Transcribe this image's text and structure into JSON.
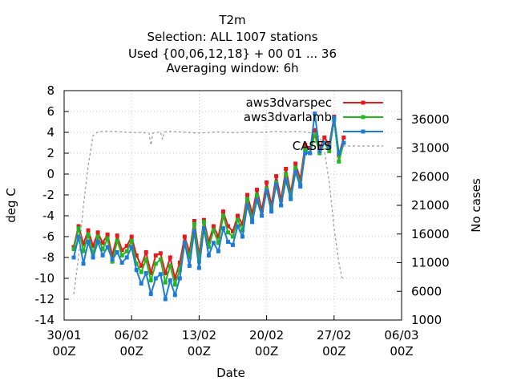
{
  "chart_data": {
    "type": "line",
    "title_lines": [
      "T2m",
      "Selection: ALL    1007 stations",
      "Used {00,06,12,18} + 00 01 ... 36",
      "Averaging window:  6h"
    ],
    "xlabel": "Date",
    "ylabel": "deg C",
    "y2label": "No cases",
    "xlim_days": [
      0,
      33
    ],
    "ylim": [
      -14,
      8
    ],
    "y2lim": [
      1000,
      41000
    ],
    "x_ticks": [
      {
        "day": 0,
        "label1": "30/01",
        "label2": "00Z"
      },
      {
        "day": 7,
        "label1": "06/02",
        "label2": "00Z"
      },
      {
        "day": 14,
        "label1": "13/02",
        "label2": "00Z"
      },
      {
        "day": 21,
        "label1": "20/02",
        "label2": "00Z"
      },
      {
        "day": 28,
        "label1": "27/02",
        "label2": "00Z"
      },
      {
        "day": 35,
        "label1": "06/03",
        "label2": "00Z"
      }
    ],
    "y_ticks": [
      -14,
      -12,
      -10,
      -8,
      -6,
      -4,
      -2,
      0,
      2,
      4,
      6,
      8
    ],
    "y2_ticks": [
      1000,
      6000,
      11000,
      16000,
      21000,
      26000,
      31000,
      36000
    ],
    "legend_position": "top-right",
    "series": [
      {
        "name": "aws3dvarspec",
        "color": "#e41a1c",
        "axis": "y",
        "x": [
          1.0,
          1.5,
          2.0,
          2.5,
          3.0,
          3.5,
          4.0,
          4.5,
          5.0,
          5.5,
          6.0,
          6.5,
          7.0,
          7.5,
          8.0,
          8.5,
          9.0,
          9.5,
          10.0,
          10.5,
          11.0,
          11.5,
          12.0,
          12.5,
          13.0,
          13.5,
          14.0,
          14.5,
          15.0,
          15.5,
          16.0,
          16.5,
          17.0,
          17.5,
          18.0,
          18.5,
          19.0,
          19.5,
          20.0,
          20.5,
          21.0,
          21.5,
          22.0,
          22.5,
          23.0,
          23.5,
          24.0,
          24.5,
          25.0,
          25.5,
          26.0,
          26.5,
          27.0,
          27.5,
          28.0,
          28.5,
          29.0
        ],
        "y": [
          -7.0,
          -5.0,
          -6.7,
          -5.4,
          -6.9,
          -5.6,
          -6.6,
          -5.8,
          -7.8,
          -5.9,
          -7.3,
          -6.9,
          -6.0,
          -7.8,
          -8.8,
          -7.5,
          -9.5,
          -7.8,
          -7.6,
          -9.5,
          -8.0,
          -10.0,
          -8.5,
          -6.0,
          -7.5,
          -4.5,
          -7.8,
          -4.4,
          -6.5,
          -5.0,
          -6.0,
          -3.6,
          -5.0,
          -5.5,
          -4.0,
          -4.8,
          -2.0,
          -3.8,
          -1.5,
          -3.5,
          -0.8,
          -3.0,
          -0.2,
          -2.5,
          0.5,
          -1.8,
          1.0,
          -0.5,
          2.8,
          2.5,
          4.2,
          2.5,
          3.5,
          2.8,
          5.5,
          1.8,
          3.5
        ]
      },
      {
        "name": "aws3dvarlamb",
        "color": "#22b822",
        "axis": "y",
        "x": [
          1.0,
          1.5,
          2.0,
          2.5,
          3.0,
          3.5,
          4.0,
          4.5,
          5.0,
          5.5,
          6.0,
          6.5,
          7.0,
          7.5,
          8.0,
          8.5,
          9.0,
          9.5,
          10.0,
          10.5,
          11.0,
          11.5,
          12.0,
          12.5,
          13.0,
          13.5,
          14.0,
          14.5,
          15.0,
          15.5,
          16.0,
          16.5,
          17.0,
          17.5,
          18.0,
          18.5,
          19.0,
          19.5,
          20.0,
          20.5,
          21.0,
          21.5,
          22.0,
          22.5,
          23.0,
          23.5,
          24.0,
          24.5,
          25.0,
          25.5,
          26.0,
          26.5,
          27.0,
          27.5,
          28.0,
          28.5,
          29.0
        ],
        "y": [
          -7.2,
          -5.2,
          -7.4,
          -5.8,
          -7.6,
          -6.0,
          -7.2,
          -6.2,
          -8.4,
          -6.4,
          -7.8,
          -7.4,
          -6.4,
          -8.6,
          -9.4,
          -8.2,
          -10.2,
          -8.6,
          -8.2,
          -10.4,
          -8.8,
          -10.6,
          -9.2,
          -6.6,
          -8.0,
          -4.8,
          -8.4,
          -4.6,
          -7.0,
          -5.4,
          -6.6,
          -4.0,
          -5.6,
          -6.0,
          -4.4,
          -5.4,
          -2.4,
          -4.4,
          -2.0,
          -4.0,
          -1.4,
          -3.4,
          -0.8,
          -3.0,
          0.0,
          -2.2,
          0.6,
          -1.0,
          2.4,
          2.0,
          3.8,
          2.0,
          3.0,
          2.2,
          5.2,
          1.2,
          3.0
        ]
      },
      {
        "name": "",
        "color": "#1f7bd8",
        "axis": "y",
        "x": [
          1.0,
          1.5,
          2.0,
          2.5,
          3.0,
          3.5,
          4.0,
          4.5,
          5.0,
          5.5,
          6.0,
          6.5,
          7.0,
          7.5,
          8.0,
          8.5,
          9.0,
          9.5,
          10.0,
          10.5,
          11.0,
          11.5,
          12.0,
          12.5,
          13.0,
          13.5,
          14.0,
          14.5,
          15.0,
          15.5,
          16.0,
          16.5,
          17.0,
          17.5,
          18.0,
          18.5,
          19.0,
          19.5,
          20.0,
          20.5,
          21.0,
          21.5,
          22.0,
          22.5,
          23.0,
          23.5,
          24.0,
          24.5,
          25.0,
          25.5,
          26.0,
          26.5,
          27.0,
          27.5,
          28.0,
          28.5,
          29.0
        ],
        "y": [
          -8.0,
          -6.0,
          -8.6,
          -6.5,
          -8.0,
          -6.5,
          -7.8,
          -7.0,
          -8.2,
          -7.5,
          -8.5,
          -8.0,
          -7.0,
          -9.2,
          -10.5,
          -9.5,
          -11.5,
          -10.0,
          -9.6,
          -12.0,
          -10.2,
          -11.6,
          -10.0,
          -6.6,
          -8.8,
          -5.5,
          -9.0,
          -5.2,
          -7.8,
          -6.6,
          -7.4,
          -5.2,
          -6.5,
          -6.8,
          -5.0,
          -6.0,
          -3.0,
          -4.6,
          -2.5,
          -4.0,
          -1.6,
          -3.6,
          -1.0,
          -3.0,
          -0.6,
          -2.4,
          0.2,
          -1.2,
          2.0,
          2.0,
          5.8,
          2.2,
          3.0,
          2.6,
          5.4,
          2.0,
          3.0
        ]
      },
      {
        "name": "CASES",
        "color": "#999999",
        "axis": "y2",
        "dashed": true,
        "x": [
          1.0,
          1.5,
          2.0,
          2.5,
          3.0,
          3.5,
          4.0,
          5.0,
          6.0,
          7.0,
          8.0,
          8.8,
          9.0,
          9.2,
          10.0,
          10.2,
          10.4,
          11.0,
          12.0,
          13.0,
          14.0,
          15.0,
          16.0,
          17.0,
          18.0,
          19.0,
          20.0,
          21.0,
          22.0,
          23.0,
          24.0,
          25.0,
          26.0,
          26.5,
          27.0,
          27.5,
          28.0,
          28.5,
          28.8,
          29.0
        ],
        "y": [
          5500,
          12000,
          21000,
          28000,
          33200,
          33800,
          33900,
          33900,
          33800,
          33700,
          33700,
          33600,
          31500,
          33600,
          33800,
          32500,
          33800,
          33900,
          33800,
          33700,
          33600,
          33700,
          33800,
          33700,
          33700,
          33800,
          33700,
          33800,
          33900,
          33800,
          33900,
          33800,
          33500,
          33000,
          30500,
          25000,
          17000,
          11000,
          8500,
          8000
        ]
      }
    ]
  }
}
